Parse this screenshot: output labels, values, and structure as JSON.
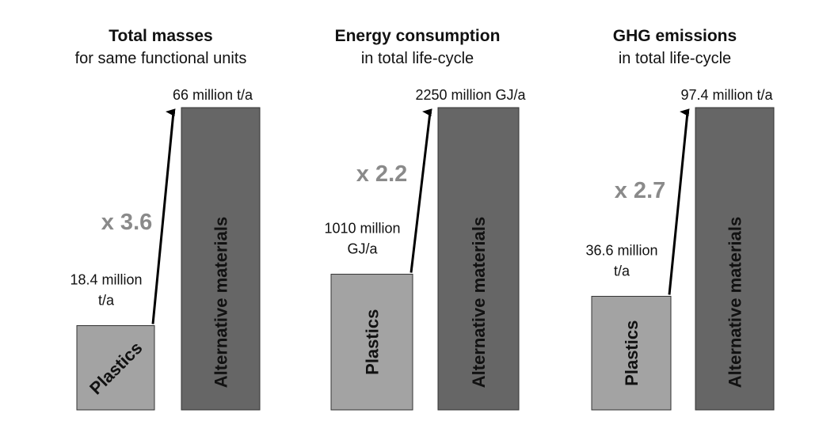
{
  "colors": {
    "plastics_bar": "#a3a3a3",
    "alternative_bar": "#666666",
    "bar_stroke": "#333333",
    "multiplier": "#8a8a8a",
    "arrow": "#000000"
  },
  "chart_data": [
    {
      "type": "bar",
      "title": "Total masses",
      "subtitle": "for same functional units",
      "categories": [
        "Plastics",
        "Alternative materials"
      ],
      "values": [
        18.4,
        66
      ],
      "unit": "million t/a",
      "value_labels": [
        "18.4 million t/a",
        "66 million t/a"
      ],
      "value_label_lines": [
        [
          "18.4 million",
          "t/a"
        ],
        [
          "66 million t/a"
        ]
      ],
      "multiplier": "x 3.6",
      "plastics_label_rotation": "diagonal"
    },
    {
      "type": "bar",
      "title": "Energy consumption",
      "subtitle": "in total life-cycle",
      "categories": [
        "Plastics",
        "Alternative materials"
      ],
      "values": [
        1010,
        2250
      ],
      "unit": "million GJ/a",
      "value_labels": [
        "1010 million GJ/a",
        "2250 million GJ/a"
      ],
      "value_label_lines": [
        [
          "1010 million",
          "GJ/a"
        ],
        [
          "2250 million GJ/a"
        ]
      ],
      "multiplier": "x 2.2",
      "plastics_label_rotation": "vertical"
    },
    {
      "type": "bar",
      "title": "GHG emissions",
      "subtitle": "in total life-cycle",
      "categories": [
        "Plastics",
        "Alternative materials"
      ],
      "values": [
        36.6,
        97.4
      ],
      "unit": "million t/a",
      "value_labels": [
        "36.6 million t/a",
        "97.4 million t/a"
      ],
      "value_label_lines": [
        [
          "36.6 million",
          "t/a"
        ],
        [
          "97.4 million t/a"
        ]
      ],
      "multiplier": "x 2.7",
      "plastics_label_rotation": "vertical"
    }
  ]
}
